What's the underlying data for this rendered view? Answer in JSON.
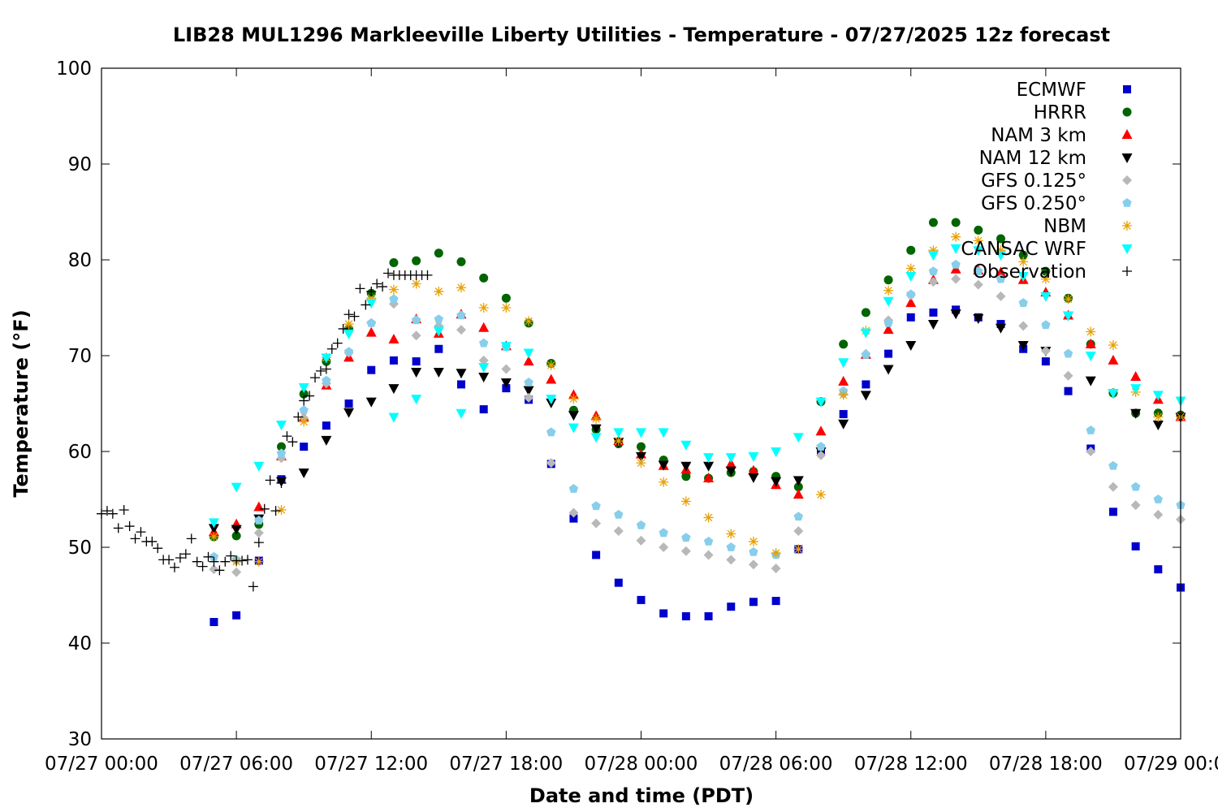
{
  "chart_data": {
    "type": "scatter",
    "title": "LIB28 MUL1296 Markleeville Liberty Utilities - Temperature - 07/27/2025 12z forecast",
    "xlabel": "Date and time (PDT)",
    "ylabel": "Temperature (°F)",
    "xlim": [
      0,
      48
    ],
    "ylim": [
      30,
      100
    ],
    "x_ticks": [
      {
        "x": 0,
        "label": "07/27 00:00"
      },
      {
        "x": 6,
        "label": "07/27 06:00"
      },
      {
        "x": 12,
        "label": "07/27 12:00"
      },
      {
        "x": 18,
        "label": "07/27 18:00"
      },
      {
        "x": 24,
        "label": "07/28 00:00"
      },
      {
        "x": 30,
        "label": "07/28 06:00"
      },
      {
        "x": 36,
        "label": "07/28 12:00"
      },
      {
        "x": 42,
        "label": "07/28 18:00"
      },
      {
        "x": 48,
        "label": "07/29 00:00"
      }
    ],
    "y_ticks": [
      30,
      40,
      50,
      60,
      70,
      80,
      90,
      100
    ],
    "grid": false,
    "legend_position": "top-right",
    "series": [
      {
        "name": "ECMWF",
        "marker": "square",
        "color": "#0000cc",
        "x": [
          5,
          6,
          7,
          8,
          9,
          10,
          11,
          12,
          13,
          14,
          15,
          16,
          17,
          18,
          19,
          20,
          21,
          22,
          23,
          24,
          25,
          26,
          27,
          28,
          29,
          30,
          31,
          32,
          33,
          34,
          35,
          36,
          37,
          38,
          39,
          40,
          41,
          42,
          43,
          44,
          45,
          46,
          47,
          48
        ],
        "y": [
          42.2,
          42.9,
          48.6,
          57.1,
          60.5,
          62.7,
          65.0,
          68.5,
          69.5,
          69.4,
          70.7,
          67.0,
          64.4,
          66.6,
          65.4,
          58.7,
          53.0,
          49.2,
          46.3,
          44.5,
          43.1,
          42.8,
          42.8,
          43.8,
          44.3,
          44.4,
          49.8,
          60.0,
          63.9,
          67.0,
          70.2,
          74.0,
          74.5,
          74.8,
          74.0,
          73.3,
          70.7,
          69.4,
          66.3,
          60.3,
          53.7,
          50.1,
          47.7,
          45.8
        ]
      },
      {
        "name": "HRRR",
        "marker": "circle",
        "color": "#006400",
        "x": [
          5,
          6,
          7,
          8,
          9,
          10,
          11,
          12,
          13,
          14,
          15,
          16,
          17,
          18,
          19,
          20,
          21,
          22,
          23,
          24,
          25,
          26,
          27,
          28,
          29,
          30,
          31,
          32,
          33,
          34,
          35,
          36,
          37,
          38,
          39,
          40,
          41,
          42,
          43,
          44,
          45,
          46,
          47,
          48
        ],
        "y": [
          51.1,
          51.2,
          52.4,
          60.5,
          66.0,
          69.4,
          72.8,
          76.5,
          79.7,
          79.9,
          80.7,
          79.8,
          78.1,
          76.0,
          73.4,
          69.2,
          64.3,
          62.3,
          60.8,
          60.5,
          59.1,
          57.4,
          57.2,
          57.8,
          57.9,
          57.4,
          56.3,
          65.2,
          71.2,
          74.5,
          77.9,
          81.0,
          83.9,
          83.9,
          83.1,
          82.2,
          80.5,
          78.8,
          76.0,
          71.2,
          66.1,
          64.0,
          64.0,
          63.8
        ]
      },
      {
        "name": "NAM 3 km",
        "marker": "triangle-up",
        "color": "#ff0000",
        "x": [
          5,
          6,
          7,
          8,
          9,
          10,
          11,
          12,
          13,
          14,
          15,
          16,
          17,
          18,
          19,
          20,
          21,
          22,
          23,
          24,
          25,
          26,
          27,
          28,
          29,
          30,
          31,
          32,
          33,
          34,
          35,
          36,
          37,
          38,
          39,
          40,
          41,
          42,
          43,
          44,
          45,
          46,
          47,
          48
        ],
        "y": [
          51.6,
          52.4,
          54.2,
          59.5,
          63.6,
          66.9,
          69.8,
          72.4,
          71.7,
          73.8,
          72.3,
          74.3,
          72.9,
          71.0,
          69.4,
          67.5,
          65.9,
          63.7,
          61.1,
          59.7,
          58.5,
          58.1,
          57.2,
          58.7,
          58.0,
          56.5,
          55.5,
          62.1,
          67.3,
          70.1,
          72.7,
          75.5,
          77.9,
          79.0,
          78.9,
          78.7,
          77.9,
          76.6,
          74.2,
          71.2,
          69.5,
          67.8,
          65.4,
          63.6
        ]
      },
      {
        "name": "NAM 12 km",
        "marker": "triangle-down",
        "color": "#000000",
        "x": [
          5,
          6,
          7,
          8,
          9,
          10,
          11,
          12,
          13,
          14,
          15,
          16,
          17,
          18,
          19,
          20,
          21,
          22,
          23,
          24,
          25,
          26,
          27,
          28,
          29,
          30,
          31,
          32,
          33,
          34,
          35,
          36,
          37,
          38,
          39,
          40,
          41,
          42,
          43,
          44,
          45,
          46,
          47,
          48
        ],
        "y": [
          52.0,
          51.9,
          53.0,
          56.9,
          57.8,
          61.2,
          64.1,
          65.2,
          66.6,
          68.3,
          68.3,
          68.2,
          67.8,
          67.2,
          66.4,
          65.1,
          63.8,
          62.4,
          61.0,
          59.5,
          58.6,
          58.5,
          58.5,
          58.0,
          57.3,
          56.9,
          57.0,
          60.0,
          62.9,
          65.9,
          68.6,
          71.1,
          73.3,
          74.4,
          73.9,
          72.9,
          71.1,
          70.5,
          74.2,
          67.4,
          66.1,
          64.0,
          62.8,
          63.6
        ]
      },
      {
        "name": "GFS 0.125°",
        "marker": "diamond",
        "color": "#b8b8b8",
        "x": [
          5,
          6,
          7,
          8,
          9,
          10,
          11,
          12,
          13,
          14,
          15,
          16,
          17,
          18,
          19,
          20,
          21,
          22,
          23,
          24,
          25,
          26,
          27,
          28,
          29,
          30,
          31,
          32,
          33,
          34,
          35,
          36,
          37,
          38,
          39,
          40,
          41,
          42,
          43,
          44,
          45,
          46,
          47,
          48
        ],
        "y": [
          47.7,
          47.4,
          51.5,
          59.3,
          63.5,
          67.1,
          70.3,
          73.4,
          75.4,
          72.1,
          73.1,
          72.7,
          69.5,
          68.6,
          65.6,
          58.8,
          53.6,
          52.5,
          51.7,
          50.7,
          50.0,
          49.6,
          49.2,
          48.7,
          48.2,
          47.8,
          51.7,
          59.6,
          66.0,
          70.2,
          73.7,
          76.3,
          77.7,
          78.0,
          77.4,
          76.2,
          73.1,
          70.5,
          67.9,
          60.0,
          56.3,
          54.4,
          53.4,
          52.9
        ]
      },
      {
        "name": "GFS 0.250°",
        "marker": "pentagon",
        "color": "#87ceeb",
        "x": [
          5,
          6,
          7,
          8,
          9,
          10,
          11,
          12,
          13,
          14,
          15,
          16,
          17,
          18,
          19,
          20,
          21,
          22,
          23,
          24,
          25,
          26,
          27,
          28,
          29,
          30,
          31,
          32,
          33,
          34,
          35,
          36,
          37,
          38,
          39,
          40,
          41,
          42,
          43,
          44,
          45,
          46,
          47,
          48
        ],
        "y": [
          49.0,
          48.7,
          52.8,
          59.8,
          64.3,
          67.4,
          70.4,
          73.4,
          75.9,
          73.7,
          73.8,
          74.2,
          71.3,
          70.9,
          67.2,
          62.0,
          56.1,
          54.3,
          53.4,
          52.3,
          51.5,
          51.0,
          50.6,
          50.0,
          49.5,
          49.2,
          53.2,
          60.5,
          66.3,
          70.1,
          73.4,
          76.4,
          78.8,
          79.5,
          78.8,
          78.0,
          75.5,
          73.2,
          70.2,
          62.2,
          58.5,
          56.3,
          55.0,
          54.4
        ]
      },
      {
        "name": "NBM",
        "marker": "asterisk",
        "color": "#e8a000",
        "x": [
          5,
          6,
          7,
          8,
          9,
          10,
          11,
          12,
          13,
          14,
          15,
          16,
          17,
          18,
          19,
          20,
          21,
          22,
          23,
          24,
          25,
          26,
          27,
          28,
          29,
          30,
          31,
          32,
          33,
          34,
          35,
          36,
          37,
          38,
          39,
          40,
          41,
          42,
          43,
          44,
          45,
          46,
          47,
          48
        ],
        "y": [
          51.1,
          48.5,
          48.5,
          53.9,
          63.1,
          69.8,
          73.3,
          76.0,
          76.9,
          77.5,
          76.7,
          77.1,
          75.0,
          75.0,
          73.6,
          69.0,
          65.5,
          63.4,
          61.1,
          58.8,
          56.8,
          54.8,
          53.1,
          51.4,
          50.6,
          49.4,
          49.8,
          55.5,
          65.9,
          72.6,
          76.8,
          79.1,
          81.0,
          82.4,
          82.0,
          81.0,
          79.8,
          78.0,
          75.9,
          72.5,
          71.1,
          66.2,
          63.6,
          63.6
        ]
      },
      {
        "name": "CANSAC WRF",
        "marker": "triangle-down",
        "color": "#00ffff",
        "x": [
          5,
          6,
          7,
          8,
          9,
          10,
          11,
          12,
          13,
          14,
          15,
          16,
          17,
          18,
          19,
          20,
          21,
          22,
          23,
          24,
          25,
          26,
          27,
          28,
          29,
          30,
          31,
          32,
          33,
          34,
          35,
          36,
          37,
          38,
          39,
          40,
          41,
          42,
          43,
          44,
          45,
          46,
          47,
          48
        ],
        "y": [
          52.6,
          56.3,
          58.5,
          62.8,
          66.7,
          69.8,
          72.3,
          75.5,
          63.6,
          65.5,
          72.6,
          64.0,
          68.8,
          71.0,
          70.3,
          65.5,
          62.5,
          61.5,
          62.0,
          62.0,
          62.0,
          60.7,
          59.4,
          59.4,
          59.5,
          60.0,
          61.5,
          65.2,
          69.3,
          72.4,
          75.7,
          78.3,
          80.5,
          81.2,
          81.0,
          80.5,
          78.3,
          76.2,
          74.2,
          70.0,
          66.1,
          66.6,
          65.9,
          65.3
        ]
      },
      {
        "name": "Observation",
        "marker": "plus",
        "color": "#000000",
        "x": [
          0.0,
          0.25,
          0.5,
          0.75,
          1.0,
          1.25,
          1.5,
          1.75,
          2.0,
          2.25,
          2.5,
          2.75,
          3.0,
          3.25,
          3.5,
          3.75,
          4.0,
          4.25,
          4.5,
          4.75,
          5.0,
          5.25,
          5.5,
          5.75,
          6.0,
          6.25,
          6.5,
          6.75,
          7.0,
          7.25,
          7.5,
          7.75,
          8.0,
          8.25,
          8.5,
          8.75,
          9.0,
          9.25,
          9.5,
          9.75,
          10.0,
          10.25,
          10.5,
          10.75,
          11.0,
          11.25,
          11.5,
          11.75,
          12.0,
          12.25,
          12.5,
          12.75,
          13.0,
          13.25,
          13.5,
          13.75,
          14.0,
          14.25,
          14.5
        ],
        "y": [
          53.5,
          53.8,
          53.5,
          52.0,
          53.9,
          52.2,
          50.9,
          51.6,
          50.6,
          50.6,
          49.9,
          48.7,
          48.7,
          47.9,
          48.9,
          49.3,
          50.9,
          48.5,
          48.0,
          49.0,
          48.5,
          47.6,
          48.5,
          49.1,
          48.6,
          48.6,
          48.7,
          45.9,
          50.5,
          54.0,
          57.0,
          53.8,
          56.7,
          61.6,
          61.0,
          63.6,
          65.3,
          65.8,
          67.7,
          68.4,
          68.6,
          70.7,
          71.3,
          72.8,
          74.3,
          74.1,
          77.0,
          75.3,
          76.7,
          77.5,
          77.2,
          78.6,
          78.4,
          78.4,
          78.4,
          78.4,
          78.4,
          78.4,
          78.4
        ]
      }
    ]
  }
}
